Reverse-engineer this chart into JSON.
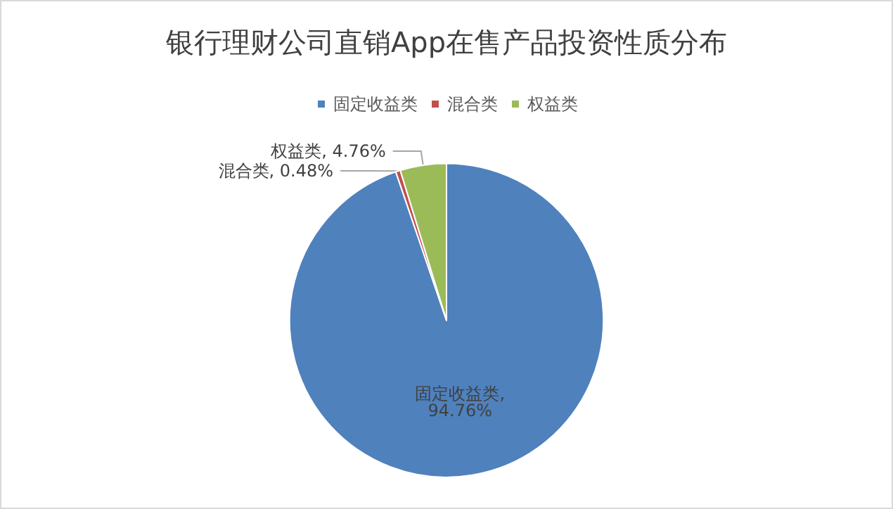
{
  "chart_data": {
    "type": "pie",
    "title": "银行理财公司直销App在售产品投资性质分布",
    "categories": [
      "固定收益类",
      "混合类",
      "权益类"
    ],
    "values": [
      94.76,
      0.48,
      4.76
    ],
    "colors": [
      "#4f81bd",
      "#c0504d",
      "#9bbb59"
    ],
    "value_labels": [
      "固定收益类, 94.76%",
      "混合类, 0.48%",
      "权益类, 4.76%"
    ],
    "legend": "top"
  }
}
